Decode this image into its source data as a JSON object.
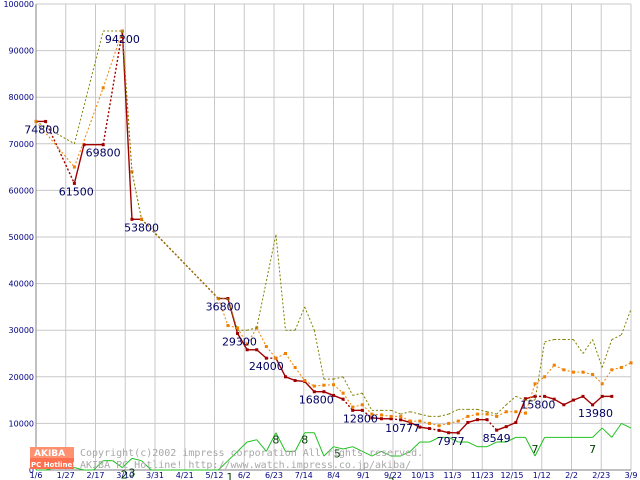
{
  "chart_data": {
    "type": "line",
    "ylim": [
      0,
      100000
    ],
    "yticks": [
      "0",
      "10000",
      "20000",
      "30000",
      "40000",
      "50000",
      "60000",
      "70000",
      "80000",
      "90000",
      "100000"
    ],
    "xlabels": [
      "1/6",
      "1/27",
      "2/17",
      "3/10",
      "3/31",
      "4/21",
      "5/12",
      "6/2",
      "6/23",
      "7/14",
      "8/4",
      "9/1",
      "9/22",
      "10/13",
      "11/3",
      "11/23",
      "12/15",
      "1/12",
      "2/2",
      "2/23",
      "3/9"
    ],
    "grid": true,
    "series": [
      {
        "key": "min",
        "color": "#a00000",
        "points": [
          [
            1,
            74800
          ],
          [
            2,
            74800
          ],
          [
            5,
            61500
          ],
          [
            6,
            69800
          ],
          [
            8,
            69800
          ],
          [
            10,
            94200
          ],
          [
            11,
            53800
          ],
          [
            12,
            53800
          ],
          [
            20,
            36800
          ],
          [
            21,
            36800
          ],
          [
            22,
            29300
          ],
          [
            23,
            25800
          ],
          [
            24,
            25800
          ],
          [
            25,
            24000
          ],
          [
            26,
            24000
          ],
          [
            27,
            20000
          ],
          [
            28,
            19200
          ],
          [
            29,
            19000
          ],
          [
            30,
            16800
          ],
          [
            31,
            16800
          ],
          [
            32,
            16000
          ],
          [
            33,
            15200
          ],
          [
            34,
            12800
          ],
          [
            35,
            12800
          ],
          [
            36,
            11200
          ],
          [
            37,
            11000
          ],
          [
            38,
            11000
          ],
          [
            39,
            10777
          ],
          [
            40,
            10200
          ],
          [
            41,
            9200
          ],
          [
            42,
            8900
          ],
          [
            43,
            8500
          ],
          [
            44,
            8000
          ],
          [
            45,
            7977
          ],
          [
            46,
            10200
          ],
          [
            47,
            10800
          ],
          [
            48,
            10800
          ],
          [
            49,
            8549
          ],
          [
            50,
            9300
          ],
          [
            51,
            10200
          ],
          [
            52,
            15300
          ],
          [
            53,
            15800
          ],
          [
            54,
            15800
          ],
          [
            55,
            15200
          ],
          [
            56,
            14000
          ],
          [
            57,
            15000
          ],
          [
            58,
            15800
          ],
          [
            59,
            13980
          ],
          [
            60,
            15800
          ],
          [
            61,
            15800
          ]
        ],
        "gaps": [
          [
            2,
            5
          ],
          [
            8,
            10
          ],
          [
            12,
            20
          ],
          [
            25,
            26
          ],
          [
            33,
            34
          ],
          [
            35,
            36
          ],
          [
            38,
            39
          ],
          [
            42,
            43
          ],
          [
            48,
            49
          ],
          [
            53,
            54
          ]
        ]
      },
      {
        "key": "avg",
        "color": "#f08000",
        "points": [
          [
            1,
            74800
          ],
          [
            5,
            65000
          ],
          [
            8,
            82000
          ],
          [
            10,
            94200
          ],
          [
            11,
            64000
          ],
          [
            12,
            53800
          ],
          [
            20,
            36800
          ],
          [
            21,
            31000
          ],
          [
            22,
            30500
          ],
          [
            23,
            27000
          ],
          [
            24,
            30500
          ],
          [
            25,
            26500
          ],
          [
            26,
            24000
          ],
          [
            27,
            25000
          ],
          [
            28,
            22000
          ],
          [
            29,
            19200
          ],
          [
            30,
            18000
          ],
          [
            31,
            18200
          ],
          [
            32,
            18300
          ],
          [
            33,
            16500
          ],
          [
            34,
            13500
          ],
          [
            35,
            14000
          ],
          [
            36,
            12000
          ],
          [
            37,
            11800
          ],
          [
            38,
            11500
          ],
          [
            39,
            11500
          ],
          [
            40,
            10500
          ],
          [
            41,
            10500
          ],
          [
            42,
            10000
          ],
          [
            43,
            9500
          ],
          [
            44,
            10000
          ],
          [
            45,
            10500
          ],
          [
            46,
            11500
          ],
          [
            47,
            12000
          ],
          [
            48,
            12000
          ],
          [
            49,
            11500
          ],
          [
            50,
            12500
          ],
          [
            51,
            12500
          ],
          [
            52,
            12200
          ],
          [
            53,
            18500
          ],
          [
            54,
            20000
          ],
          [
            55,
            22500
          ],
          [
            56,
            21500
          ],
          [
            57,
            21000
          ],
          [
            58,
            21000
          ],
          [
            59,
            20500
          ],
          [
            60,
            18500
          ],
          [
            61,
            21500
          ],
          [
            62,
            22000
          ],
          [
            63,
            23000
          ]
        ]
      },
      {
        "key": "max",
        "color": "#808000",
        "points": [
          [
            1,
            74800
          ],
          [
            5,
            70000
          ],
          [
            8,
            94200
          ],
          [
            10,
            94200
          ],
          [
            11,
            64000
          ],
          [
            12,
            53800
          ],
          [
            20,
            36800
          ],
          [
            21,
            36800
          ],
          [
            22,
            30000
          ],
          [
            23,
            30000
          ],
          [
            24,
            30500
          ],
          [
            26,
            50500
          ],
          [
            27,
            30000
          ],
          [
            28,
            30000
          ],
          [
            29,
            35000
          ],
          [
            30,
            30000
          ],
          [
            31,
            19500
          ],
          [
            32,
            19500
          ],
          [
            33,
            20000
          ],
          [
            34,
            16000
          ],
          [
            35,
            16500
          ],
          [
            36,
            12800
          ],
          [
            37,
            12800
          ],
          [
            38,
            12800
          ],
          [
            39,
            12000
          ],
          [
            40,
            12500
          ],
          [
            41,
            12000
          ],
          [
            42,
            11500
          ],
          [
            43,
            11500
          ],
          [
            44,
            12000
          ],
          [
            45,
            13000
          ],
          [
            46,
            13000
          ],
          [
            47,
            13000
          ],
          [
            48,
            12500
          ],
          [
            49,
            12000
          ],
          [
            50,
            14000
          ],
          [
            51,
            15800
          ],
          [
            52,
            15000
          ],
          [
            53,
            15000
          ],
          [
            54,
            27500
          ],
          [
            55,
            28000
          ],
          [
            56,
            28000
          ],
          [
            57,
            28000
          ],
          [
            58,
            25000
          ],
          [
            59,
            28000
          ],
          [
            60,
            22000
          ],
          [
            61,
            28000
          ],
          [
            62,
            29000
          ],
          [
            63,
            34500
          ]
        ]
      },
      {
        "key": "count",
        "color": "#20c020",
        "points": [
          [
            1,
            0
          ],
          [
            2,
            0
          ],
          [
            3,
            500
          ],
          [
            4,
            1000
          ],
          [
            5,
            500
          ],
          [
            6,
            0
          ],
          [
            7,
            0
          ],
          [
            8,
            2000
          ],
          [
            9,
            2000
          ],
          [
            10,
            500
          ],
          [
            11,
            2500
          ],
          [
            12,
            2000
          ],
          [
            13,
            0
          ],
          [
            14,
            0
          ],
          [
            15,
            0
          ],
          [
            16,
            0
          ],
          [
            17,
            0
          ],
          [
            18,
            0
          ],
          [
            19,
            0
          ],
          [
            20,
            0
          ],
          [
            21,
            2000
          ],
          [
            22,
            4000
          ],
          [
            23,
            6000
          ],
          [
            24,
            6500
          ],
          [
            25,
            4000
          ],
          [
            26,
            8000
          ],
          [
            27,
            4000
          ],
          [
            28,
            4000
          ],
          [
            29,
            8000
          ],
          [
            30,
            8000
          ],
          [
            31,
            3000
          ],
          [
            32,
            5000
          ],
          [
            33,
            4500
          ],
          [
            34,
            5000
          ],
          [
            35,
            4000
          ],
          [
            36,
            3000
          ],
          [
            37,
            4000
          ],
          [
            38,
            3000
          ],
          [
            39,
            3000
          ],
          [
            40,
            4000
          ],
          [
            41,
            6000
          ],
          [
            42,
            6000
          ],
          [
            43,
            7000
          ],
          [
            44,
            7000
          ],
          [
            45,
            6000
          ],
          [
            46,
            6000
          ],
          [
            47,
            5000
          ],
          [
            48,
            5000
          ],
          [
            49,
            6000
          ],
          [
            50,
            6000
          ],
          [
            51,
            7000
          ],
          [
            52,
            7000
          ],
          [
            53,
            3000
          ],
          [
            54,
            7000
          ],
          [
            55,
            7000
          ],
          [
            56,
            7000
          ],
          [
            57,
            7000
          ],
          [
            58,
            7000
          ],
          [
            59,
            7000
          ],
          [
            60,
            9000
          ],
          [
            61,
            7000
          ],
          [
            62,
            10000
          ],
          [
            63,
            9000
          ]
        ]
      }
    ],
    "price_labels": [
      {
        "x": 1.6,
        "y": 74800,
        "text": "74800",
        "pos": "below"
      },
      {
        "x": 5.2,
        "y": 61500,
        "text": "61500",
        "pos": "below"
      },
      {
        "x": 8.0,
        "y": 69800,
        "text": "69800",
        "pos": "below"
      },
      {
        "x": 10.0,
        "y": 94200,
        "text": "94200",
        "pos": "below"
      },
      {
        "x": 12.0,
        "y": 53800,
        "text": "53800",
        "pos": "below"
      },
      {
        "x": 20.5,
        "y": 36800,
        "text": "36800",
        "pos": "below"
      },
      {
        "x": 22.2,
        "y": 29300,
        "text": "29300",
        "pos": "below"
      },
      {
        "x": 25.0,
        "y": 24000,
        "text": "24000",
        "pos": "below"
      },
      {
        "x": 30.2,
        "y": 16800,
        "text": "16800",
        "pos": "below"
      },
      {
        "x": 34.8,
        "y": 12800,
        "text": "12800",
        "pos": "below"
      },
      {
        "x": 39.2,
        "y": 10777,
        "text": "10777",
        "pos": "below"
      },
      {
        "x": 44.2,
        "y": 7977,
        "text": "7977",
        "pos": "below"
      },
      {
        "x": 49.0,
        "y": 8549,
        "text": "8549",
        "pos": "below"
      },
      {
        "x": 53.3,
        "y": 15800,
        "text": "15800",
        "pos": "below"
      },
      {
        "x": 59.3,
        "y": 13980,
        "text": "13980",
        "pos": "below"
      }
    ],
    "count_labels": [
      {
        "x": 10.2,
        "y": 500,
        "text": "2"
      },
      {
        "x": 11.0,
        "y": 1000,
        "text": "3"
      },
      {
        "x": 21.2,
        "y": 0,
        "text": "1"
      },
      {
        "x": 26.0,
        "y": 8000,
        "text": "8"
      },
      {
        "x": 29.0,
        "y": 8000,
        "text": "8"
      },
      {
        "x": 32.4,
        "y": 5000,
        "text": "5"
      },
      {
        "x": 38.0,
        "y": -1000,
        "text": "3"
      },
      {
        "x": 53.0,
        "y": 6000,
        "text": "7"
      },
      {
        "x": 59.0,
        "y": 6000,
        "text": "7"
      }
    ]
  },
  "badge": {
    "line1": "AKIBA",
    "line2": "PC Hotline!"
  },
  "watermark": {
    "line1": "Copyright(c)2002 impress corporation All rights reserved.",
    "line2": "AKIBA PC Hotline! http://www.watch.impress.co.jp/akiba/"
  }
}
